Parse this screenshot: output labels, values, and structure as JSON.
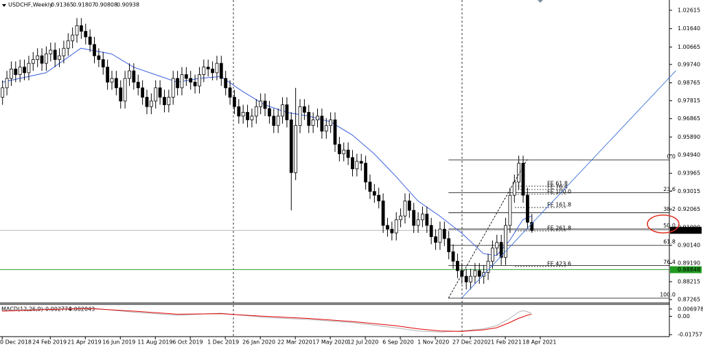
{
  "chart_data": {
    "type": "candlestick",
    "title": "USDCHF,Weekly",
    "colors": {
      "up": "#ffffff",
      "down": "#000000",
      "outline": "#000000"
    },
    "xlim": [
      -0.5,
      152.5
    ],
    "ylim": [
      0.8712,
      1.0316
    ],
    "yticks": [
      1.02615,
      {
        "value": 1.0164,
        "label": "1.01640"
      },
      1.00665,
      {
        "value": 0.9974,
        "label": "0.99740"
      },
      0.98765,
      0.97815,
      0.96865,
      {
        "value": 0.9589,
        "label": "0.95890"
      },
      {
        "value": 0.9494,
        "label": "0.94940"
      },
      0.93965,
      0.93015,
      0.92065,
      {
        "value": 0.9109,
        "label": "0.91090"
      },
      {
        "value": 0.9014,
        "label": "0.90140"
      },
      {
        "value": 0.8919,
        "label": "0.89190"
      },
      0.88215,
      0.87265
    ],
    "xticks": [
      {
        "value": 0,
        "label": "0 Dec 2018"
      },
      {
        "value": 11,
        "label": "24 Feb 2019"
      },
      {
        "value": 19,
        "label": "21 Apr 2019"
      },
      {
        "value": 27,
        "label": "16 Jun 2019"
      },
      {
        "value": 35,
        "label": "11 Aug 2019"
      },
      {
        "value": 43,
        "label": "6 Oct 2019"
      },
      {
        "value": 51,
        "label": "1 Dec 2019"
      },
      {
        "value": 59,
        "label": "26 Jan 2020"
      },
      {
        "value": 67,
        "label": "22 Mar 2020"
      },
      {
        "value": 75,
        "label": "17 May 2020"
      },
      {
        "value": 83,
        "label": "12 Jul 2020"
      },
      {
        "value": 91,
        "label": "6 Sep 2020"
      },
      {
        "value": 99,
        "label": "1 Nov 2020"
      },
      {
        "value": 107,
        "label": "27 Dec 2020"
      },
      {
        "value": 115,
        "label": "21 Feb 2021"
      },
      {
        "value": 123,
        "label": "18 Apr 2021"
      }
    ],
    "candles": [
      [
        0.98,
        0.989,
        0.976,
        0.985
      ],
      [
        0.985,
        0.994,
        0.981,
        0.99
      ],
      [
        0.99,
        0.999,
        0.986,
        0.995
      ],
      [
        0.995,
        0.999,
        0.988,
        0.992
      ],
      [
        0.992,
        1.0,
        0.988,
        0.996
      ],
      [
        0.996,
        1.0,
        0.989,
        0.993
      ],
      [
        0.993,
        1.002,
        0.989,
        0.998
      ],
      [
        0.998,
        1.004,
        0.994,
        1.0
      ],
      [
        1.0,
        1.006,
        0.996,
        1.002
      ],
      [
        1.002,
        1.006,
        0.994,
        0.998
      ],
      [
        0.998,
        1.007,
        0.994,
        1.003
      ],
      [
        1.003,
        1.009,
        0.999,
        1.005
      ],
      [
        1.005,
        1.009,
        0.996,
        1.0
      ],
      [
        1.0,
        1.006,
        0.996,
        1.002
      ],
      [
        1.002,
        1.01,
        0.998,
        1.006
      ],
      [
        1.006,
        1.014,
        1.002,
        1.01
      ],
      [
        1.01,
        1.017,
        1.006,
        1.013
      ],
      [
        1.013,
        1.022,
        1.009,
        1.018
      ],
      [
        1.018,
        1.022,
        1.011,
        1.015
      ],
      [
        1.015,
        1.019,
        1.008,
        1.012
      ],
      [
        1.012,
        1.016,
        1.004,
        1.008
      ],
      [
        1.008,
        1.012,
        0.998,
        1.002
      ],
      [
        1.002,
        1.006,
        0.996,
        1.0
      ],
      [
        1.0,
        1.004,
        0.992,
        0.996
      ],
      [
        0.996,
        1.0,
        0.984,
        0.988
      ],
      [
        0.988,
        0.994,
        0.984,
        0.99
      ],
      [
        0.99,
        0.994,
        0.981,
        0.985
      ],
      [
        0.985,
        0.989,
        0.974,
        0.978
      ],
      [
        0.978,
        0.994,
        0.974,
        0.99
      ],
      [
        0.99,
        0.998,
        0.986,
        0.994
      ],
      [
        0.994,
        0.998,
        0.984,
        0.988
      ],
      [
        0.988,
        0.992,
        0.981,
        0.985
      ],
      [
        0.985,
        0.989,
        0.976,
        0.98
      ],
      [
        0.98,
        0.984,
        0.971,
        0.975
      ],
      [
        0.975,
        0.982,
        0.971,
        0.978
      ],
      [
        0.978,
        0.989,
        0.974,
        0.985
      ],
      [
        0.985,
        0.989,
        0.976,
        0.98
      ],
      [
        0.98,
        0.984,
        0.972,
        0.976
      ],
      [
        0.976,
        0.984,
        0.972,
        0.98
      ],
      [
        0.98,
        0.994,
        0.976,
        0.99
      ],
      [
        0.99,
        0.994,
        0.981,
        0.985
      ],
      [
        0.985,
        0.996,
        0.981,
        0.992
      ],
      [
        0.992,
        0.996,
        0.986,
        0.99
      ],
      [
        0.99,
        0.994,
        0.984,
        0.988
      ],
      [
        0.988,
        0.992,
        0.982,
        0.986
      ],
      [
        0.986,
        0.996,
        0.982,
        0.992
      ],
      [
        0.992,
        1.0,
        0.988,
        0.996
      ],
      [
        0.996,
        1.0,
        0.991,
        0.995
      ],
      [
        0.995,
        0.999,
        0.989,
        0.993
      ],
      [
        0.993,
        1.002,
        0.989,
        0.998
      ],
      [
        0.998,
        1.002,
        0.986,
        0.99
      ],
      [
        0.99,
        0.994,
        0.981,
        0.985
      ],
      [
        0.985,
        0.989,
        0.976,
        0.98
      ],
      [
        0.98,
        0.984,
        0.971,
        0.975
      ],
      [
        0.975,
        0.979,
        0.966,
        0.97
      ],
      [
        0.97,
        0.976,
        0.966,
        0.972
      ],
      [
        0.972,
        0.976,
        0.964,
        0.968
      ],
      [
        0.968,
        0.974,
        0.964,
        0.97
      ],
      [
        0.97,
        0.979,
        0.966,
        0.975
      ],
      [
        0.975,
        0.982,
        0.971,
        0.978
      ],
      [
        0.978,
        0.982,
        0.97,
        0.974
      ],
      [
        0.974,
        0.978,
        0.966,
        0.97
      ],
      [
        0.97,
        0.974,
        0.961,
        0.965
      ],
      [
        0.965,
        0.974,
        0.961,
        0.97
      ],
      [
        0.97,
        0.98,
        0.966,
        0.976
      ],
      [
        0.976,
        0.98,
        0.964,
        0.968
      ],
      [
        0.968,
        0.972,
        0.92,
        0.94
      ],
      [
        0.94,
        0.985,
        0.936,
        0.965
      ],
      [
        0.965,
        0.979,
        0.961,
        0.975
      ],
      [
        0.975,
        0.979,
        0.968,
        0.972
      ],
      [
        0.972,
        0.976,
        0.961,
        0.965
      ],
      [
        0.965,
        0.972,
        0.961,
        0.968
      ],
      [
        0.968,
        0.974,
        0.964,
        0.97
      ],
      [
        0.97,
        0.974,
        0.958,
        0.962
      ],
      [
        0.962,
        0.969,
        0.958,
        0.965
      ],
      [
        0.965,
        0.972,
        0.961,
        0.968
      ],
      [
        0.968,
        0.972,
        0.951,
        0.955
      ],
      [
        0.955,
        0.959,
        0.946,
        0.95
      ],
      [
        0.95,
        0.956,
        0.946,
        0.952
      ],
      [
        0.952,
        0.956,
        0.944,
        0.948
      ],
      [
        0.948,
        0.952,
        0.938,
        0.942
      ],
      [
        0.942,
        0.95,
        0.938,
        0.946
      ],
      [
        0.946,
        0.95,
        0.941,
        0.945
      ],
      [
        0.945,
        0.949,
        0.931,
        0.935
      ],
      [
        0.935,
        0.939,
        0.926,
        0.93
      ],
      [
        0.93,
        0.934,
        0.924,
        0.928
      ],
      [
        0.928,
        0.932,
        0.921,
        0.925
      ],
      [
        0.925,
        0.929,
        0.908,
        0.912
      ],
      [
        0.912,
        0.916,
        0.906,
        0.91
      ],
      [
        0.91,
        0.914,
        0.904,
        0.908
      ],
      [
        0.908,
        0.919,
        0.904,
        0.915
      ],
      [
        0.915,
        0.921,
        0.911,
        0.917
      ],
      [
        0.917,
        0.929,
        0.913,
        0.925
      ],
      [
        0.925,
        0.929,
        0.916,
        0.92
      ],
      [
        0.92,
        0.924,
        0.908,
        0.912
      ],
      [
        0.912,
        0.919,
        0.908,
        0.915
      ],
      [
        0.915,
        0.922,
        0.911,
        0.918
      ],
      [
        0.918,
        0.922,
        0.908,
        0.912
      ],
      [
        0.912,
        0.916,
        0.902,
        0.906
      ],
      [
        0.906,
        0.91,
        0.899,
        0.903
      ],
      [
        0.903,
        0.914,
        0.899,
        0.91
      ],
      [
        0.91,
        0.914,
        0.901,
        0.905
      ],
      [
        0.905,
        0.909,
        0.894,
        0.898
      ],
      [
        0.898,
        0.902,
        0.889,
        0.893
      ],
      [
        0.893,
        0.897,
        0.884,
        0.888
      ],
      [
        0.888,
        0.892,
        0.881,
        0.885
      ],
      [
        0.885,
        0.889,
        0.878,
        0.882
      ],
      [
        0.882,
        0.889,
        0.878,
        0.885
      ],
      [
        0.885,
        0.892,
        0.881,
        0.888
      ],
      [
        0.888,
        0.892,
        0.881,
        0.885
      ],
      [
        0.885,
        0.891,
        0.881,
        0.887
      ],
      [
        0.887,
        0.897,
        0.883,
        0.893
      ],
      [
        0.893,
        0.904,
        0.889,
        0.9
      ],
      [
        0.9,
        0.907,
        0.896,
        0.903
      ],
      [
        0.903,
        0.907,
        0.891,
        0.895
      ],
      [
        0.895,
        0.916,
        0.891,
        0.912
      ],
      [
        0.912,
        0.932,
        0.908,
        0.928
      ],
      [
        0.928,
        0.939,
        0.924,
        0.935
      ],
      [
        0.935,
        0.949,
        0.931,
        0.945
      ],
      [
        0.945,
        0.949,
        0.924,
        0.928
      ],
      [
        0.928,
        0.932,
        0.91,
        0.91365
      ],
      [
        0.91365,
        0.91807,
        0.90808,
        0.90938
      ]
    ],
    "ma": {
      "color": "#3a5ee0",
      "x": [
        0,
        10,
        18,
        25,
        30,
        35,
        40,
        45,
        50,
        55,
        60,
        65,
        70,
        75,
        80,
        85,
        90,
        95,
        100,
        105,
        110,
        113,
        116,
        119,
        121
      ],
      "values": [
        0.988,
        0.993,
        1.006,
        1.003,
        0.996,
        0.992,
        0.988,
        0.99,
        0.991,
        0.983,
        0.976,
        0.972,
        0.97,
        0.967,
        0.96,
        0.95,
        0.938,
        0.925,
        0.917,
        0.908,
        0.897,
        0.896,
        0.904,
        0.915,
        0.917
      ]
    },
    "price_line": {
      "color": "#a0a0a0"
    },
    "hline": {
      "value": 0.88848,
      "color": "#1f9a1f"
    },
    "fibo": {
      "color": "#000000",
      "levels": [
        {
          "label": "0.0",
          "price": 0.9467
        },
        {
          "label": "23.6",
          "price": 0.9294
        },
        {
          "label": "38.2",
          "price": 0.9187
        },
        {
          "label": "50.0",
          "price": 0.9101
        },
        {
          "label": "61.8",
          "price": 0.9014
        },
        {
          "label": "76.4",
          "price": 0.8907
        },
        {
          "label": "100.0",
          "price": 0.8734
        }
      ]
    },
    "fe": [
      {
        "label": "FE 61.8",
        "price": 0.9328
      },
      {
        "label": "FE 76.4",
        "price": 0.931
      },
      {
        "label": "FE 100.0",
        "price": 0.9285
      },
      {
        "label": "FE 161.8",
        "price": 0.9215
      },
      {
        "label": "FE 261.8",
        "price": 0.9091
      },
      {
        "label": "FE 423.6",
        "price": 0.8902
      }
    ],
    "trendlines": [
      {
        "color": "#3a6fd8",
        "dashed": false,
        "points": [
          [
            105,
            0.8734
          ],
          [
            154,
            0.9941
          ]
        ]
      },
      {
        "color": "#000000",
        "dashed": true,
        "points": [
          [
            102,
            0.8734
          ],
          [
            120,
            0.947
          ]
        ]
      }
    ],
    "macd": {
      "title": "MACD(12,26,9)",
      "ylim": [
        -0.0195,
        0.0115
      ],
      "yticks": [
        0.006978,
        {
          "value": 0,
          "label": "0.00"
        },
        -0.017577
      ],
      "series": [
        {
          "color": "#b0b0b0",
          "x": [
            0,
            10,
            20,
            30,
            40,
            50,
            60,
            70,
            80,
            90,
            95,
            100,
            105,
            110,
            113,
            116,
            118,
            119,
            120,
            121
          ],
          "values": [
            0.006,
            0.007,
            0.008,
            0.004,
            0.001,
            0.003,
            -0.001,
            -0.003,
            -0.006,
            -0.011,
            -0.014,
            -0.015,
            -0.014,
            -0.012,
            -0.009,
            -0.002,
            0.004,
            0.0055,
            0.0045,
            0.002774
          ]
        },
        {
          "color": "#e00000",
          "x": [
            0,
            10,
            20,
            30,
            40,
            50,
            60,
            70,
            80,
            90,
            95,
            100,
            105,
            110,
            113,
            116,
            118,
            120,
            121
          ],
          "values": [
            0.005,
            0.0065,
            0.0075,
            0.005,
            0.002,
            0.0025,
            0,
            -0.002,
            -0.005,
            -0.009,
            -0.012,
            -0.014,
            -0.0145,
            -0.013,
            -0.011,
            -0.006,
            -0.002,
            0.001,
            0.002043
          ]
        }
      ]
    }
  }
}
